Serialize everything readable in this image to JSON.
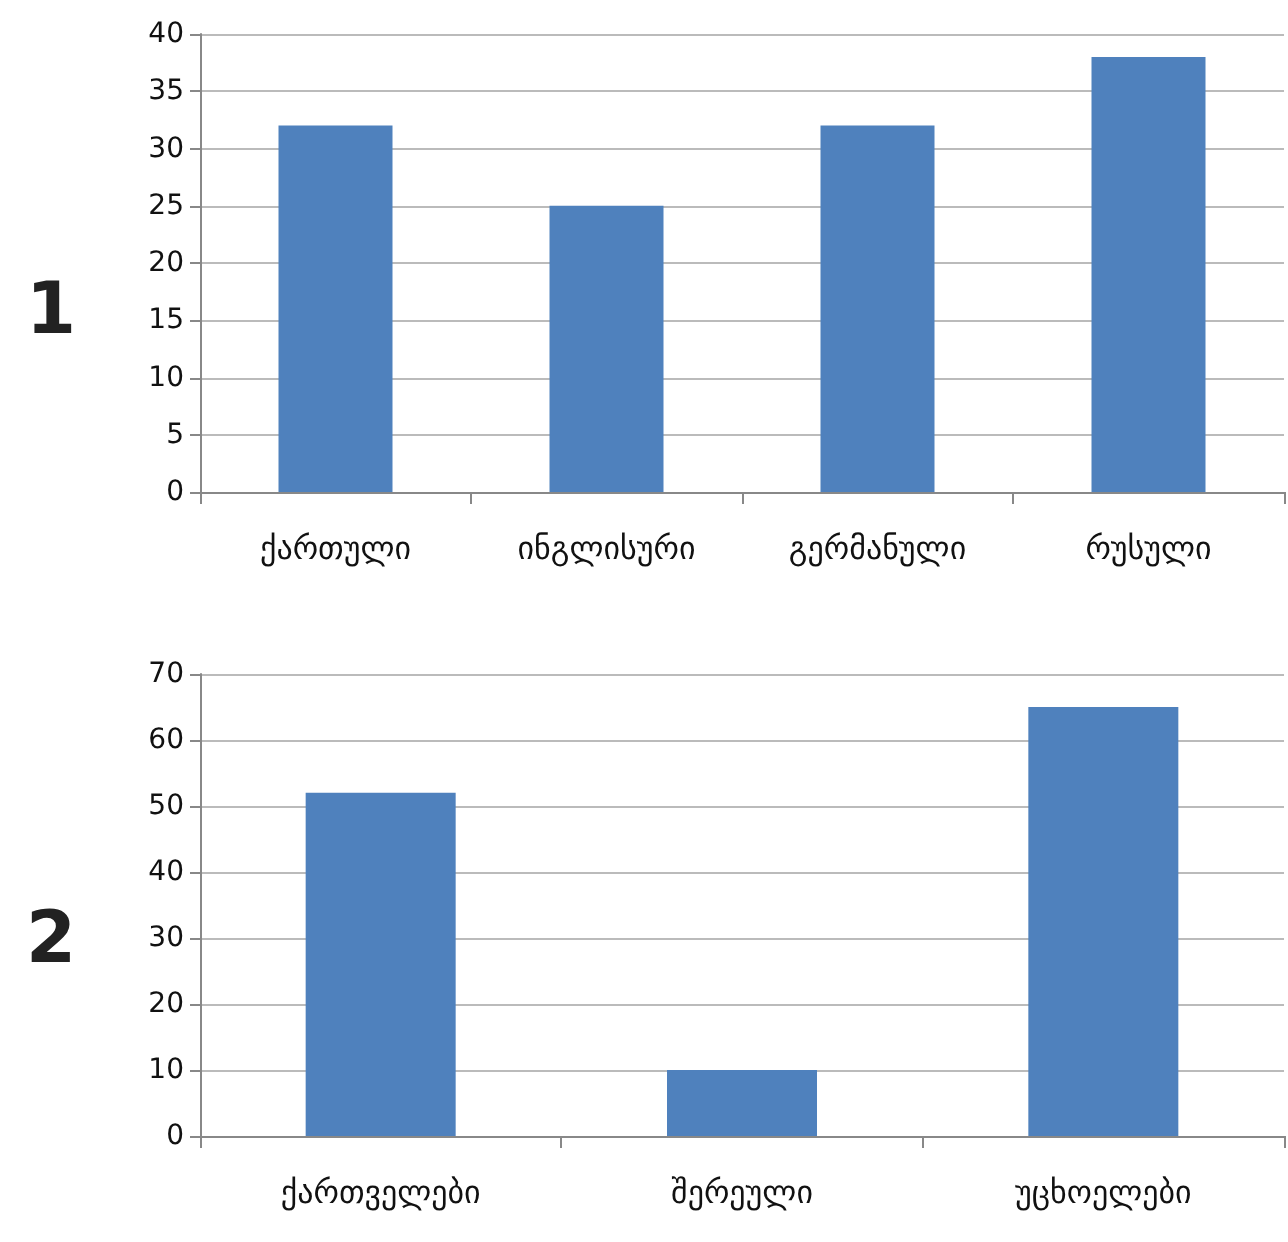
{
  "chart_data": [
    {
      "type": "bar",
      "title": "1",
      "categories": [
        "ქართული",
        "ინგლისური",
        "გერმანული",
        "რუსული"
      ],
      "values": [
        32,
        25,
        32,
        38
      ],
      "color": "#4f81bd",
      "ylim": [
        0,
        40
      ],
      "yticks": [
        0,
        5,
        10,
        15,
        20,
        25,
        30,
        35,
        40
      ],
      "grid": "y"
    },
    {
      "type": "bar",
      "title": "2",
      "categories": [
        "ქართველები",
        "შერეული",
        "უცხოელები"
      ],
      "values": [
        52,
        10,
        65
      ],
      "color": "#4f81bd",
      "ylim": [
        0,
        70
      ],
      "yticks": [
        0,
        10,
        20,
        30,
        40,
        50,
        60,
        70
      ],
      "grid": "y"
    }
  ]
}
